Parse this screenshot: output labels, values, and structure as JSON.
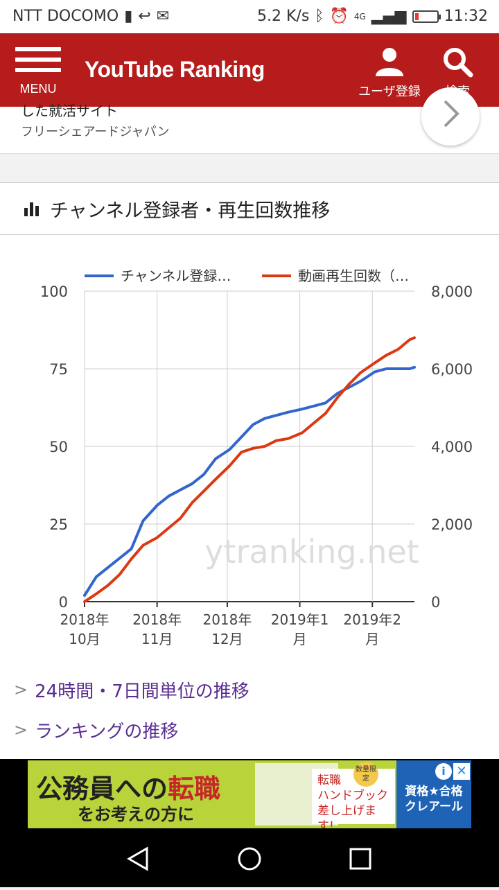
{
  "status": {
    "carrier": "NTT DOCOMO",
    "speed": "5.2 K/s",
    "network": "4G",
    "time": "11:32"
  },
  "appbar": {
    "menu_label": "MENU",
    "title": "YouTube Ranking",
    "user_label": "ユーザ登録",
    "search_label": "検索"
  },
  "card": {
    "cut_text": "した就活サイト",
    "subtitle": "フリーシェアードジャパン"
  },
  "section": {
    "title": "チャンネル登録者・再生回数推移"
  },
  "chart_data": {
    "type": "line",
    "watermark": "ytranking.net",
    "x_ticks": [
      {
        "label1": "2018年",
        "label2": "10月"
      },
      {
        "label1": "2018年",
        "label2": "11月"
      },
      {
        "label1": "2018年",
        "label2": "12月"
      },
      {
        "label1": "2019年1",
        "label2": "月"
      },
      {
        "label1": "2019年2",
        "label2": "月"
      }
    ],
    "y_left_ticks": [
      "0",
      "25",
      "50",
      "75",
      "100"
    ],
    "y_right_ticks": [
      "0",
      "2,000",
      "4,000",
      "6,000",
      "8,000"
    ],
    "ylim_left": [
      0,
      100
    ],
    "ylim_right": [
      0,
      8000
    ],
    "grid": true,
    "legend_position": "top",
    "x": [
      0,
      5,
      10,
      15,
      20,
      25,
      31,
      36,
      41,
      46,
      51,
      56,
      62,
      67,
      72,
      77,
      82,
      87,
      93,
      98,
      103,
      108,
      113,
      118,
      124,
      129,
      134,
      139,
      141
    ],
    "series": [
      {
        "name": "チャンネル登録…",
        "color": "#3366cc",
        "axis": "left",
        "values": [
          2,
          8,
          11,
          14,
          17,
          26,
          31,
          34,
          36,
          38,
          41,
          46,
          49,
          53,
          57,
          59,
          60,
          61,
          62,
          63,
          64,
          67,
          69,
          71,
          74,
          75,
          75,
          75,
          75.5
        ]
      },
      {
        "name": "動画再生回数（…",
        "color": "#dc3912",
        "axis": "right",
        "values": [
          0,
          200,
          420,
          700,
          1100,
          1450,
          1650,
          1900,
          2150,
          2550,
          2850,
          3150,
          3500,
          3850,
          3950,
          4000,
          4150,
          4200,
          4350,
          4600,
          4850,
          5250,
          5600,
          5900,
          6150,
          6350,
          6500,
          6750,
          6800
        ]
      }
    ]
  },
  "links": [
    {
      "text": "24時間・7日間単位の推移"
    },
    {
      "text": "ランキングの推移"
    }
  ],
  "ad": {
    "line1_a": "公務員への",
    "line1_b": "転職",
    "line2": "をお考えの方に",
    "mid_line1": "転職",
    "mid_line2": "ハンドブック",
    "mid_line3": "差し上げます!",
    "badge": "数量限定",
    "right_line1": "資格★合格",
    "right_line2": "クレアール",
    "info": "i",
    "close": "✕"
  }
}
